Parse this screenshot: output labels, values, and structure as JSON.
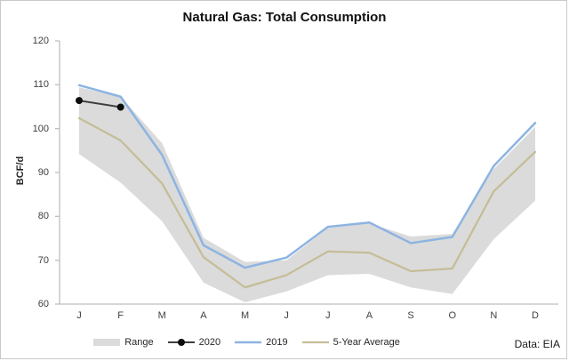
{
  "window": {
    "title": "Natural Gas: Total Consumption"
  },
  "footer": {
    "source": "Data: EIA"
  },
  "chart_data": {
    "type": "line",
    "title": "Natural Gas: Total Consumption",
    "xlabel": "",
    "ylabel": "BCF/d",
    "ylim": [
      60,
      120
    ],
    "ytick_step": 10,
    "grid": false,
    "legend_position": "bottom",
    "categories": [
      "J",
      "F",
      "M",
      "A",
      "M",
      "J",
      "J",
      "A",
      "S",
      "O",
      "N",
      "D"
    ],
    "series": [
      {
        "name": "Range",
        "type": "band",
        "color": "#dbdbdb",
        "max": [
          109.4,
          107.3,
          96.7,
          75.1,
          69.6,
          70.0,
          77.3,
          78.4,
          75.4,
          76.0,
          90.8,
          100.4
        ],
        "min": [
          94.2,
          87.7,
          78.9,
          64.9,
          60.4,
          62.9,
          66.6,
          66.9,
          63.8,
          62.3,
          74.8,
          83.6
        ]
      },
      {
        "name": "2020",
        "type": "line",
        "color": "#3f3f3f",
        "marker_color": "#0d0d0d",
        "markers": true,
        "width": 2,
        "values": [
          106.4,
          104.9,
          null,
          null,
          null,
          null,
          null,
          null,
          null,
          null,
          null,
          null
        ]
      },
      {
        "name": "2019",
        "type": "line",
        "color": "#8db4e2",
        "markers": false,
        "width": 2.5,
        "values": [
          109.9,
          107.3,
          94.0,
          73.4,
          68.3,
          70.6,
          77.6,
          78.6,
          73.9,
          75.3,
          91.5,
          101.3
        ]
      },
      {
        "name": "5-Year Average",
        "type": "line",
        "color": "#c4bd97",
        "markers": false,
        "width": 2.25,
        "values": [
          102.4,
          97.3,
          87.5,
          70.7,
          63.8,
          66.6,
          72.0,
          71.7,
          67.5,
          68.1,
          85.7,
          94.7
        ]
      }
    ],
    "axis_color": "#bfbfbf"
  }
}
